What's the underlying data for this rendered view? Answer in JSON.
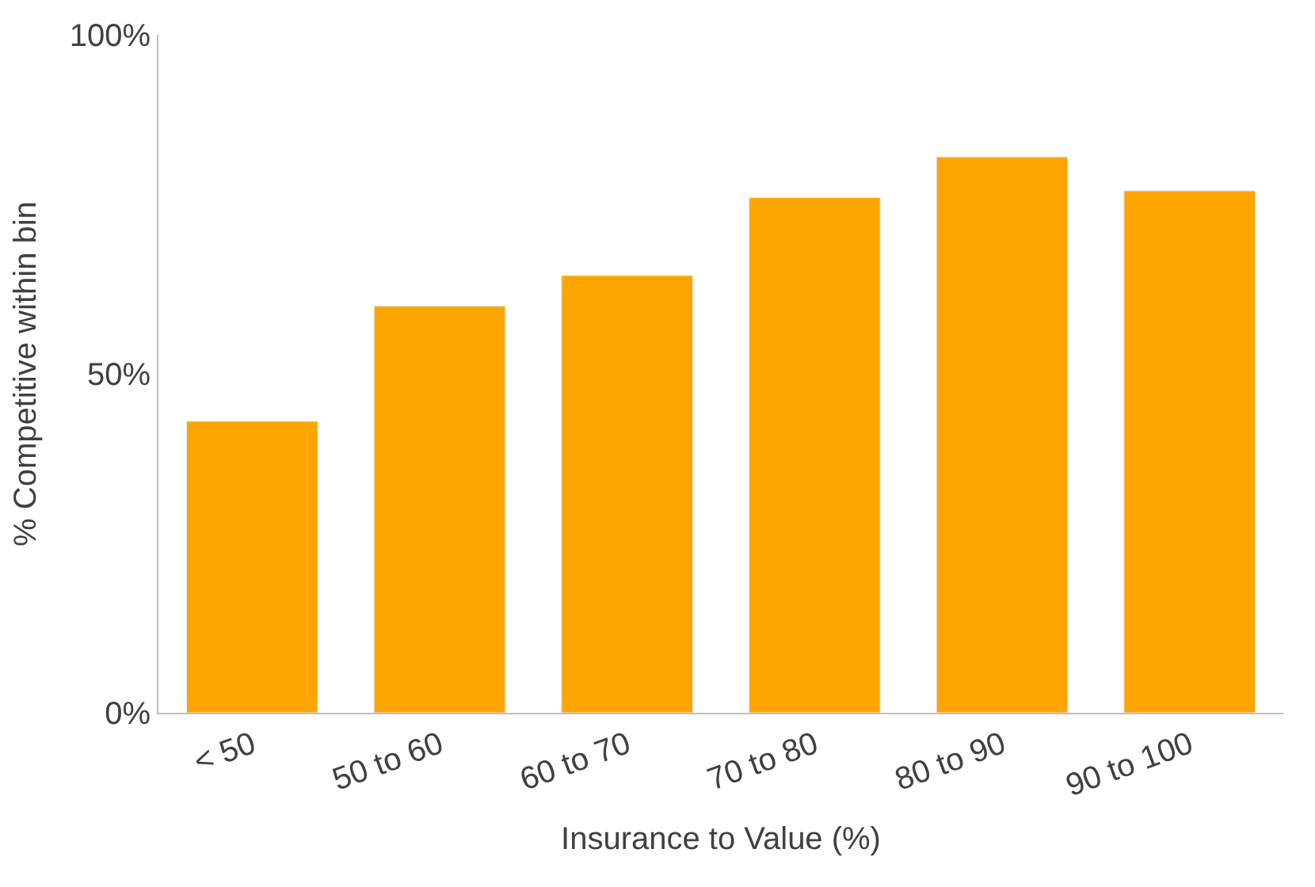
{
  "chart_data": {
    "type": "bar",
    "xlabel": "Insurance to Value (%)",
    "ylabel": "% Competitive within bin",
    "categories": [
      "< 50",
      "50 to 60",
      "60 to 70",
      "70 to 80",
      "80 to 90",
      "90 to 100"
    ],
    "values": [
      43,
      60,
      64.5,
      76,
      82,
      77
    ],
    "color": "#ffa500",
    "ylim": [
      0,
      100
    ],
    "yticks": [
      {
        "value": 0,
        "label": "0%"
      },
      {
        "value": 50,
        "label": "50%"
      },
      {
        "value": 100,
        "label": "100%"
      }
    ]
  }
}
